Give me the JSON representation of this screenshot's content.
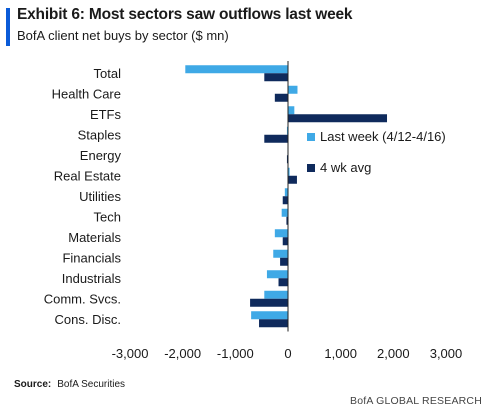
{
  "header": {
    "title": "Exhibit 6: Most sectors saw outflows last week",
    "subtitle": "BofA client net buys by sector ($ mn)"
  },
  "source": {
    "label": "Source:",
    "text": "BofA Securities"
  },
  "footer": {
    "brand": "BofA GLOBAL RESEARCH"
  },
  "colors": {
    "accent": "#0a5bd8",
    "last_week": "#3fa9e6",
    "avg_4wk": "#0f2a5c"
  },
  "chart_data": {
    "type": "bar",
    "orientation": "horizontal",
    "categories": [
      "Total",
      "Health Care",
      "ETFs",
      "Staples",
      "Energy",
      "Real Estate",
      "Utilities",
      "Tech",
      "Materials",
      "Financials",
      "Industrials",
      "Comm. Svcs.",
      "Cons. Disc."
    ],
    "series": [
      {
        "name": "Last week (4/12-4/16)",
        "values": [
          -1950,
          180,
          120,
          -20,
          -10,
          30,
          -60,
          -120,
          -250,
          -280,
          -400,
          -450,
          -700
        ]
      },
      {
        "name": "4 wk avg",
        "values": [
          -450,
          -250,
          1880,
          -450,
          -20,
          170,
          -100,
          -30,
          -100,
          -150,
          -180,
          -720,
          -550
        ]
      }
    ],
    "xlim": [
      -3000,
      3000
    ],
    "xticks": [
      -3000,
      -2000,
      -1000,
      0,
      1000,
      2000,
      3000
    ],
    "xtick_labels": [
      "-3,000",
      "-2,000",
      "-1,000",
      "0",
      "1,000",
      "2,000",
      "3,000"
    ],
    "legend_position": "right"
  }
}
